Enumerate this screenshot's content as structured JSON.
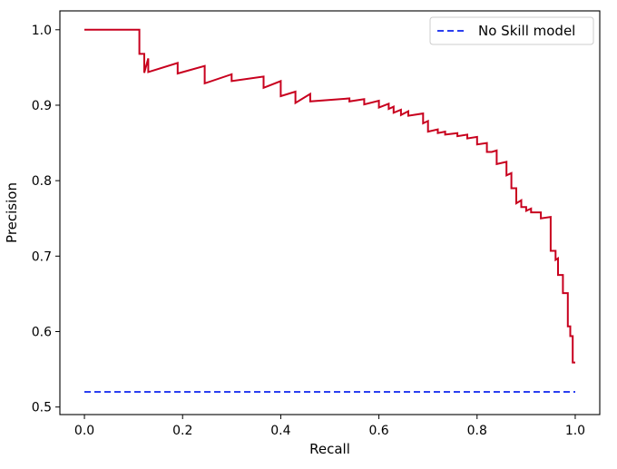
{
  "chart_data": {
    "type": "line",
    "xlabel": "Recall",
    "ylabel": "Precision",
    "xlim": [
      -0.05,
      1.05
    ],
    "ylim": [
      0.49,
      1.025
    ],
    "xticks": [
      0.0,
      0.2,
      0.4,
      0.6,
      0.8,
      1.0
    ],
    "xtick_labels": [
      "0.0",
      "0.2",
      "0.4",
      "0.6",
      "0.8",
      "1.0"
    ],
    "yticks": [
      0.5,
      0.6,
      0.7,
      0.8,
      0.9,
      1.0
    ],
    "ytick_labels": [
      "0.5",
      "0.6",
      "0.7",
      "0.8",
      "0.9",
      "1.0"
    ],
    "grid": false,
    "legend_position": "upper right",
    "series": [
      {
        "name": "No Skill model",
        "color": "#2b3ff0",
        "style": "dashed",
        "x": [
          0.0,
          1.0
        ],
        "y": [
          0.52,
          0.52
        ]
      },
      {
        "color": "#c8001e",
        "style": "solid",
        "steps": true,
        "x": [
          0.0,
          0.112,
          0.112,
          0.122,
          0.122,
          0.13,
          0.13,
          0.19,
          0.19,
          0.245,
          0.245,
          0.3,
          0.3,
          0.365,
          0.365,
          0.4,
          0.4,
          0.43,
          0.43,
          0.46,
          0.46,
          0.54,
          0.54,
          0.57,
          0.57,
          0.6,
          0.6,
          0.62,
          0.62,
          0.63,
          0.63,
          0.645,
          0.645,
          0.66,
          0.66,
          0.69,
          0.69,
          0.7,
          0.7,
          0.72,
          0.72,
          0.735,
          0.735,
          0.76,
          0.76,
          0.78,
          0.78,
          0.8,
          0.8,
          0.82,
          0.82,
          0.83,
          0.83,
          0.84,
          0.84,
          0.86,
          0.86,
          0.87,
          0.87,
          0.88,
          0.88,
          0.89,
          0.89,
          0.9,
          0.9,
          0.91,
          0.91,
          0.93,
          0.93,
          0.95,
          0.95,
          0.96,
          0.96,
          0.965,
          0.965,
          0.975,
          0.975,
          0.985,
          0.985,
          0.99,
          0.99,
          0.995,
          0.995,
          1.0
        ],
        "y": [
          1.0,
          1.0,
          0.968,
          0.968,
          0.943,
          0.962,
          0.944,
          0.956,
          0.942,
          0.952,
          0.929,
          0.941,
          0.932,
          0.938,
          0.923,
          0.932,
          0.912,
          0.918,
          0.903,
          0.915,
          0.905,
          0.909,
          0.905,
          0.908,
          0.901,
          0.906,
          0.897,
          0.902,
          0.895,
          0.898,
          0.89,
          0.894,
          0.887,
          0.892,
          0.886,
          0.889,
          0.876,
          0.879,
          0.865,
          0.868,
          0.863,
          0.865,
          0.861,
          0.863,
          0.859,
          0.861,
          0.856,
          0.858,
          0.848,
          0.85,
          0.838,
          0.838,
          0.838,
          0.84,
          0.822,
          0.825,
          0.807,
          0.81,
          0.79,
          0.79,
          0.77,
          0.774,
          0.765,
          0.765,
          0.76,
          0.763,
          0.758,
          0.758,
          0.75,
          0.752,
          0.707,
          0.707,
          0.695,
          0.697,
          0.675,
          0.675,
          0.651,
          0.651,
          0.607,
          0.607,
          0.594,
          0.594,
          0.559,
          0.559
        ]
      }
    ]
  }
}
